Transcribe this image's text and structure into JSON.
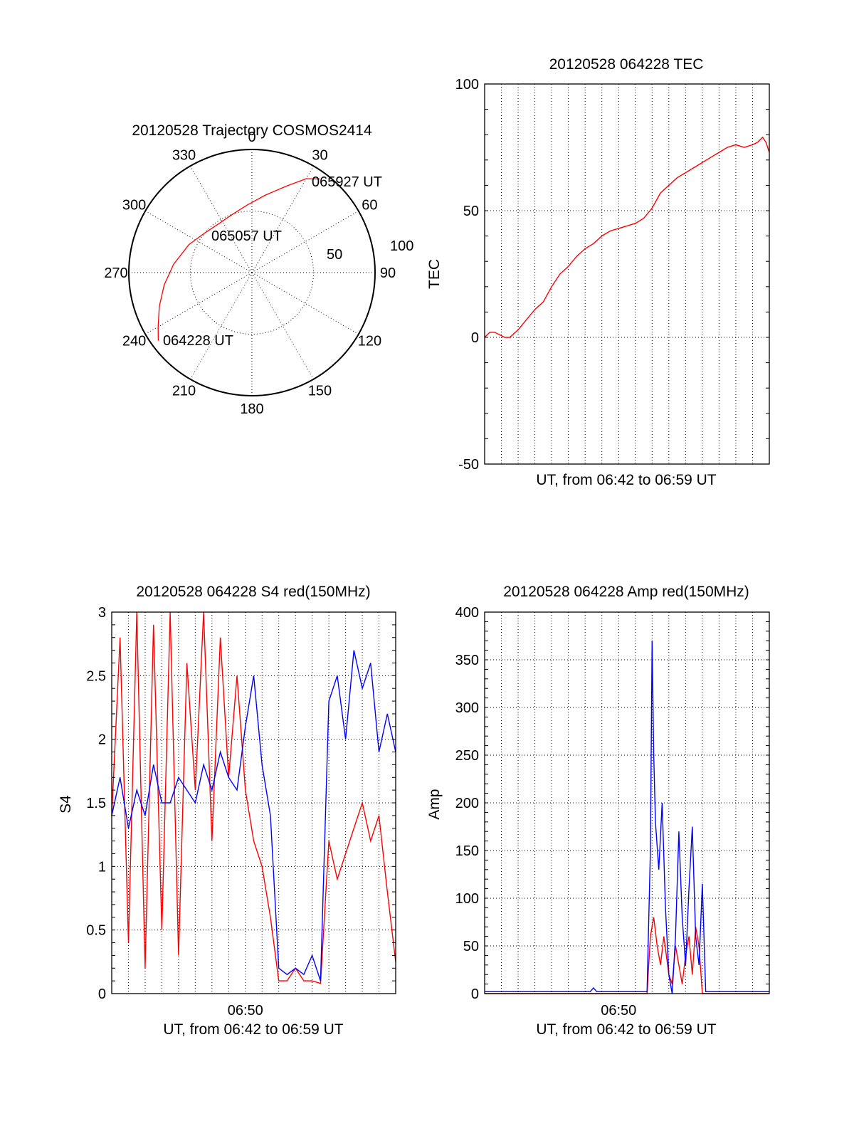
{
  "colors": {
    "red": "#ff0000",
    "blue": "#0000ff",
    "axis": "#000000"
  },
  "chart_data": [
    {
      "id": "trajectory",
      "type": "polar",
      "title": "20120528 Trajectory COSMOS2414",
      "azimuth_labels": [
        "0",
        "30",
        "60",
        "90",
        "120",
        "150",
        "180",
        "210",
        "240",
        "270",
        "300",
        "330"
      ],
      "radial_labels": [
        "50",
        "100"
      ],
      "rmax": 100,
      "track": {
        "color": "#ff0000",
        "points": [
          {
            "az": 234,
            "el_r": 94
          },
          {
            "az": 240,
            "el_r": 88
          },
          {
            "az": 250,
            "el_r": 80
          },
          {
            "az": 262,
            "el_r": 72
          },
          {
            "az": 276,
            "el_r": 64
          },
          {
            "az": 294,
            "el_r": 56
          },
          {
            "az": 310,
            "el_r": 50
          },
          {
            "az": 326,
            "el_r": 48
          },
          {
            "az": 342,
            "el_r": 50
          },
          {
            "az": 356,
            "el_r": 55
          },
          {
            "az": 10,
            "el_r": 64
          },
          {
            "az": 22,
            "el_r": 76
          },
          {
            "az": 30,
            "el_r": 88
          },
          {
            "az": 36,
            "el_r": 94
          }
        ]
      },
      "annotations": [
        "065927 UT",
        "065057 UT",
        "064228 UT"
      ]
    },
    {
      "id": "tec",
      "type": "line",
      "title": "20120528 064228 TEC",
      "xlabel": "UT, from 06:42 to 06:59 UT",
      "ylabel": "TEC",
      "ylim": [
        -50,
        100
      ],
      "yticks": [
        "-50",
        "0",
        "50",
        "100"
      ],
      "xlim": [
        0,
        17
      ],
      "series": [
        {
          "color": "#ff0000",
          "x": [
            0,
            0.3,
            0.6,
            0.9,
            1.2,
            1.5,
            2.0,
            2.5,
            3.0,
            3.5,
            4.0,
            4.5,
            5.0,
            5.5,
            6.0,
            6.5,
            7.0,
            7.5,
            8.0,
            8.5,
            9.0,
            9.5,
            10.0,
            10.5,
            11.0,
            11.5,
            12.0,
            12.5,
            13.0,
            13.5,
            14.0,
            14.5,
            15.0,
            15.5,
            16.0,
            16.3,
            16.6,
            16.8,
            17.0
          ],
          "y": [
            0,
            2,
            2,
            1,
            0,
            0,
            3,
            7,
            11,
            14,
            20,
            25,
            28,
            32,
            35,
            37,
            40,
            42,
            43,
            44,
            45,
            47,
            51,
            57,
            60,
            63,
            65,
            67,
            69,
            71,
            73,
            75,
            76,
            75,
            76,
            77,
            79,
            77,
            73
          ]
        }
      ]
    },
    {
      "id": "s4",
      "type": "line",
      "title": "20120528 064228 S4 red(150MHz)",
      "xlabel": "UT, from 06:42 to 06:59 UT",
      "ylabel": "S4",
      "ylim": [
        0,
        3
      ],
      "yticks": [
        "0",
        "0.5",
        "1",
        "1.5",
        "2",
        "2.5",
        "3"
      ],
      "xlim": [
        0,
        17
      ],
      "xticks": [
        {
          "x": 8,
          "label": "06:50"
        }
      ],
      "series": [
        {
          "color": "#ff0000",
          "x": [
            0,
            0.5,
            1,
            1.5,
            2,
            2.5,
            3,
            3.5,
            4,
            4.5,
            5,
            5.5,
            6,
            6.5,
            7,
            7.5,
            8,
            8.5,
            9,
            9.5,
            10,
            10.5,
            11,
            11.5,
            12,
            12.5,
            13,
            13.5,
            14,
            14.5,
            15,
            15.5,
            16,
            16.5,
            17
          ],
          "y": [
            1.4,
            2.8,
            0.4,
            3,
            0.2,
            2.9,
            0.5,
            3,
            0.3,
            2.6,
            1.6,
            3,
            1.2,
            2.8,
            1.7,
            2.5,
            1.6,
            1.2,
            1.0,
            0.6,
            0.1,
            0.1,
            0.2,
            0.1,
            0.1,
            0.08,
            1.2,
            0.9,
            1.1,
            1.3,
            1.5,
            1.2,
            1.4,
            0.8,
            0.25
          ]
        },
        {
          "color": "#0000ff",
          "x": [
            0,
            0.5,
            1,
            1.5,
            2,
            2.5,
            3,
            3.5,
            4,
            4.5,
            5,
            5.5,
            6,
            6.5,
            7,
            7.5,
            8,
            8.5,
            9,
            9.5,
            10,
            10.5,
            11,
            11.5,
            12,
            12.5,
            13,
            13.5,
            14,
            14.5,
            15,
            15.5,
            16,
            16.5,
            17
          ],
          "y": [
            1.4,
            1.7,
            1.3,
            1.6,
            1.4,
            1.8,
            1.5,
            1.5,
            1.7,
            1.6,
            1.5,
            1.8,
            1.6,
            1.9,
            1.7,
            1.6,
            2.1,
            2.5,
            1.8,
            1.4,
            0.2,
            0.15,
            0.2,
            0.15,
            0.3,
            0.1,
            2.3,
            2.5,
            2.0,
            2.7,
            2.4,
            2.6,
            1.9,
            2.2,
            1.9
          ]
        }
      ]
    },
    {
      "id": "amp",
      "type": "line",
      "title": "20120528 064228 Amp red(150MHz)",
      "xlabel": "UT, from 06:42 to 06:59 UT",
      "ylabel": "Amp",
      "ylim": [
        0,
        400
      ],
      "yticks": [
        "0",
        "50",
        "100",
        "150",
        "200",
        "250",
        "300",
        "350",
        "400"
      ],
      "xlim": [
        0,
        17
      ],
      "xticks": [
        {
          "x": 8,
          "label": "06:50"
        }
      ],
      "series": [
        {
          "color": "#ff0000",
          "x": [
            0,
            9.7,
            9.9,
            10.1,
            10.3,
            10.5,
            10.7,
            11.0,
            11.2,
            11.4,
            11.6,
            11.8,
            12.0,
            12.2,
            12.4,
            12.6,
            12.8,
            13.0,
            17
          ],
          "y": [
            0,
            0,
            60,
            80,
            50,
            30,
            60,
            20,
            10,
            50,
            30,
            10,
            40,
            60,
            20,
            70,
            50,
            0,
            0
          ]
        },
        {
          "color": "#0000ff",
          "x": [
            0,
            6.3,
            6.5,
            6.7,
            9.7,
            9.9,
            10.0,
            10.1,
            10.2,
            10.4,
            10.6,
            10.8,
            11.0,
            11.2,
            11.4,
            11.6,
            11.8,
            12.0,
            12.2,
            12.4,
            12.6,
            12.8,
            13.0,
            13.2,
            17
          ],
          "y": [
            2,
            2,
            6,
            2,
            2,
            150,
            370,
            250,
            180,
            130,
            200,
            90,
            20,
            0,
            60,
            170,
            80,
            30,
            110,
            175,
            60,
            30,
            115,
            2,
            2
          ]
        }
      ]
    }
  ]
}
